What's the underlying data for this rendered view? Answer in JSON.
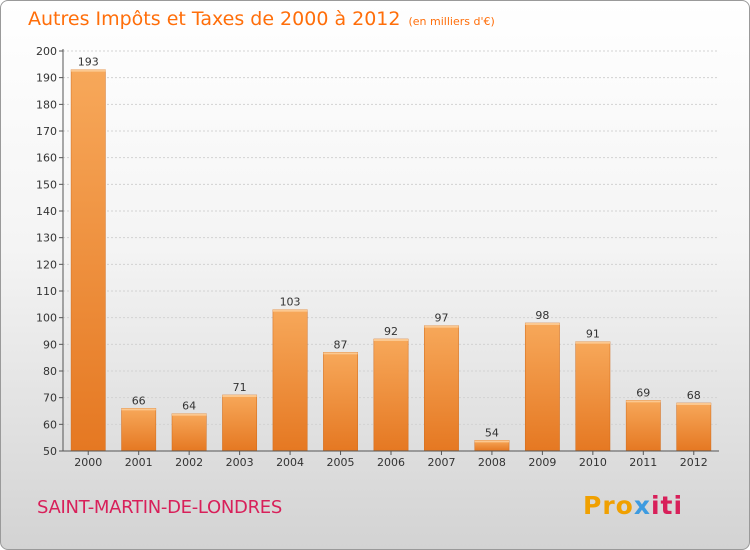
{
  "title": "Autres Impôts et Taxes de 2000 à 2012",
  "subtitle": "(en milliers d'€)",
  "commune": "SAINT-MARTIN-DE-LONDRES",
  "logo": {
    "part1": "Pro",
    "part2": "x",
    "part3": "iti"
  },
  "colors": {
    "title": "#ff6e0a",
    "commune": "#d8205a",
    "bar_top": "#f7a85a",
    "bar_bottom": "#e57822"
  },
  "chart_data": {
    "type": "bar",
    "title": "Autres Impôts et Taxes de 2000 à 2012",
    "subtitle": "(en milliers d'€)",
    "xlabel": "",
    "ylabel": "",
    "categories": [
      "2000",
      "2001",
      "2002",
      "2003",
      "2004",
      "2005",
      "2006",
      "2007",
      "2008",
      "2009",
      "2010",
      "2011",
      "2012"
    ],
    "values": [
      193,
      66,
      64,
      71,
      103,
      87,
      92,
      97,
      54,
      98,
      91,
      69,
      68
    ],
    "ylim": [
      50,
      200
    ],
    "yticks": [
      50,
      60,
      70,
      80,
      90,
      100,
      110,
      120,
      130,
      140,
      150,
      160,
      170,
      180,
      190,
      200
    ],
    "grid": true,
    "data_labels": true
  }
}
